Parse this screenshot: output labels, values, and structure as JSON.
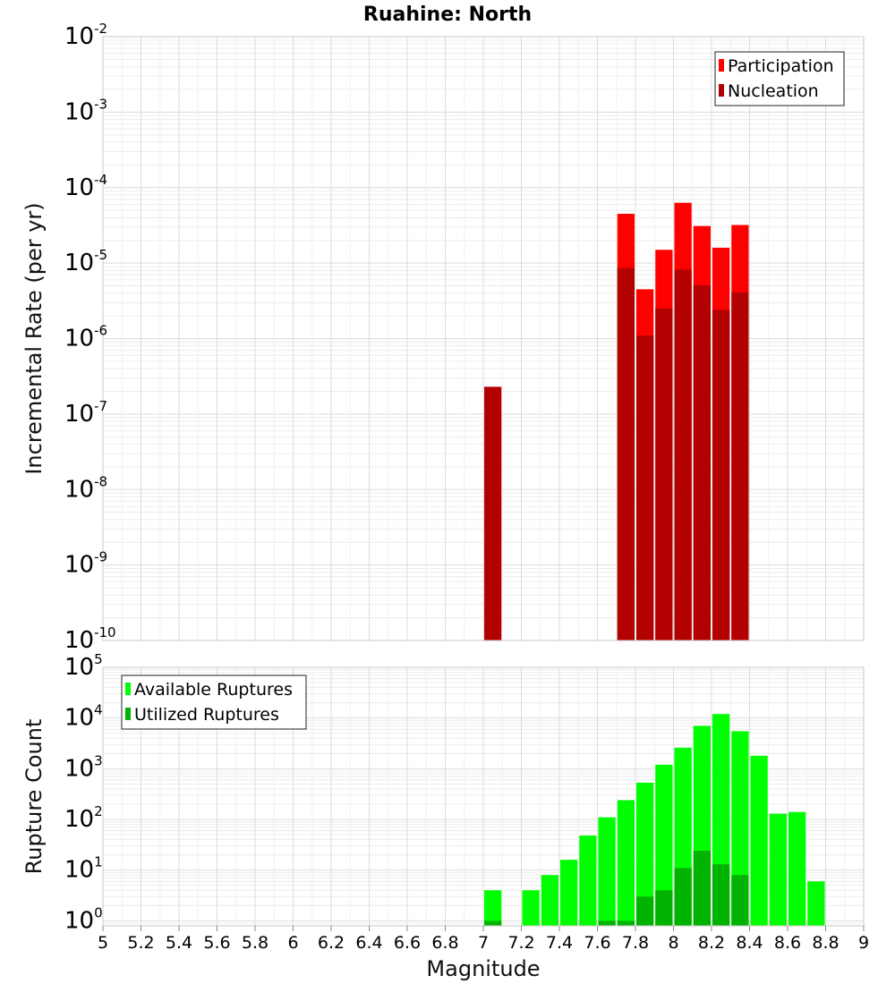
{
  "title": "Ruahine: North",
  "chart_data": [
    {
      "type": "bar",
      "name": "rate",
      "ylabel": "Incremental Rate (per yr)",
      "yscale": "log",
      "ylim_exp": [
        -10,
        -2
      ],
      "ytick_base": "10",
      "ytick_exponents": [
        "-10",
        "-9",
        "-8",
        "-7",
        "-6",
        "-5",
        "-4",
        "-3",
        "-2"
      ],
      "legend": {
        "position": "top-right"
      },
      "series": [
        {
          "name": "Participation",
          "color": "#ff0000",
          "x": [
            7.75,
            7.85,
            7.95,
            8.05,
            8.15,
            8.25,
            8.35
          ],
          "values": [
            4.5e-05,
            4.5e-06,
            1.5e-05,
            6.3e-05,
            3.1e-05,
            1.6e-05,
            3.2e-05
          ]
        },
        {
          "name": "Nucleation",
          "color": "#b30000",
          "x": [
            7.05,
            7.75,
            7.85,
            7.95,
            8.05,
            8.15,
            8.25,
            8.35
          ],
          "values": [
            2.3e-07,
            8.6e-06,
            1.1e-06,
            2.5e-06,
            8.2e-06,
            5.1e-06,
            2.4e-06,
            4.1e-06
          ]
        }
      ]
    },
    {
      "type": "bar",
      "name": "count",
      "ylabel": "Rupture Count",
      "yscale": "log",
      "ylim_exp": [
        -0.1,
        5
      ],
      "ytick_base": "10",
      "ytick_exponents": [
        "0",
        "1",
        "2",
        "3",
        "4",
        "5"
      ],
      "xlabel": "Magnitude",
      "xlim": [
        5,
        9
      ],
      "xticks": [
        "5",
        "5.2",
        "5.4",
        "5.6",
        "5.8",
        "6",
        "6.2",
        "6.4",
        "6.6",
        "6.8",
        "7",
        "7.2",
        "7.4",
        "7.6",
        "7.8",
        "8",
        "8.2",
        "8.4",
        "8.6",
        "8.8",
        "9"
      ],
      "legend": {
        "position": "top-left"
      },
      "series": [
        {
          "name": "Available Ruptures",
          "color": "#00ff00",
          "x": [
            7.05,
            7.25,
            7.35,
            7.45,
            7.55,
            7.65,
            7.75,
            7.85,
            7.95,
            8.05,
            8.15,
            8.25,
            8.35,
            8.45,
            8.55,
            8.65,
            8.75
          ],
          "values": [
            4,
            4,
            8,
            16,
            48,
            110,
            240,
            530,
            1200,
            2600,
            7000,
            12000,
            5500,
            1800,
            130,
            140,
            6
          ]
        },
        {
          "name": "Utilized Ruptures",
          "color": "#00b300",
          "x": [
            7.05,
            7.65,
            7.75,
            7.85,
            7.95,
            8.05,
            8.15,
            8.25,
            8.35
          ],
          "values": [
            1,
            1,
            1,
            3,
            4,
            11,
            24,
            13,
            8
          ]
        }
      ]
    }
  ]
}
